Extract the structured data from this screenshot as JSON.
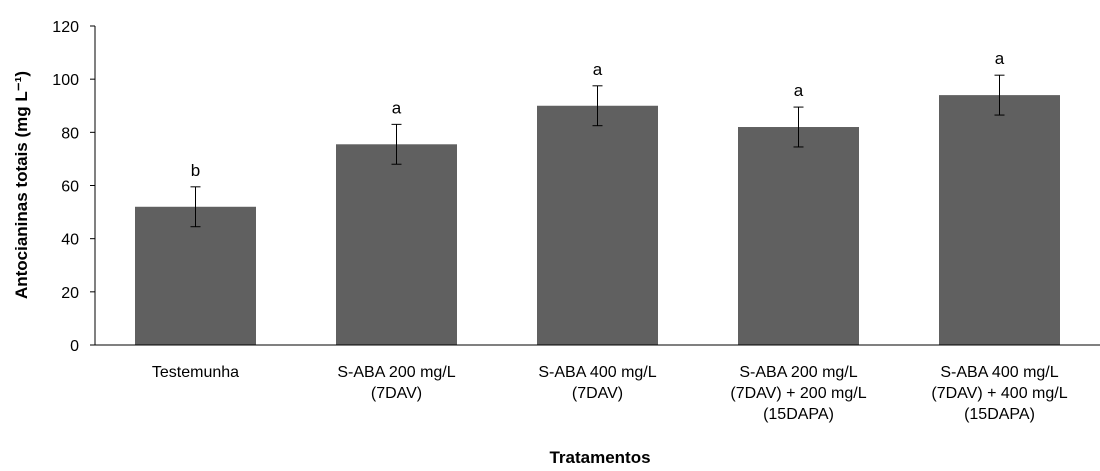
{
  "chart_data": {
    "type": "bar",
    "categories": [
      [
        "Testemunha"
      ],
      [
        "S-ABA 200 mg/L",
        "(7DAV)"
      ],
      [
        "S-ABA 400 mg/L",
        "(7DAV)"
      ],
      [
        "S-ABA 200 mg/L",
        "(7DAV) + 200 mg/L",
        "(15DAPA)"
      ],
      [
        "S-ABA 400 mg/L",
        "(7DAV) + 400 mg/L",
        "(15DAPA)"
      ]
    ],
    "values": [
      52,
      75.5,
      90,
      82,
      94
    ],
    "errors": [
      7.5,
      7.5,
      7.5,
      7.5,
      7.5
    ],
    "significance": [
      "b",
      "a",
      "a",
      "a",
      "a"
    ],
    "ylabel": "Antocianinas totais (mg L⁻¹)",
    "xlabel": "Tratamentos",
    "ylim": [
      0,
      120
    ],
    "yticks": [
      0,
      20,
      40,
      60,
      80,
      100,
      120
    ],
    "bar_color": "#606060",
    "grid": false
  }
}
